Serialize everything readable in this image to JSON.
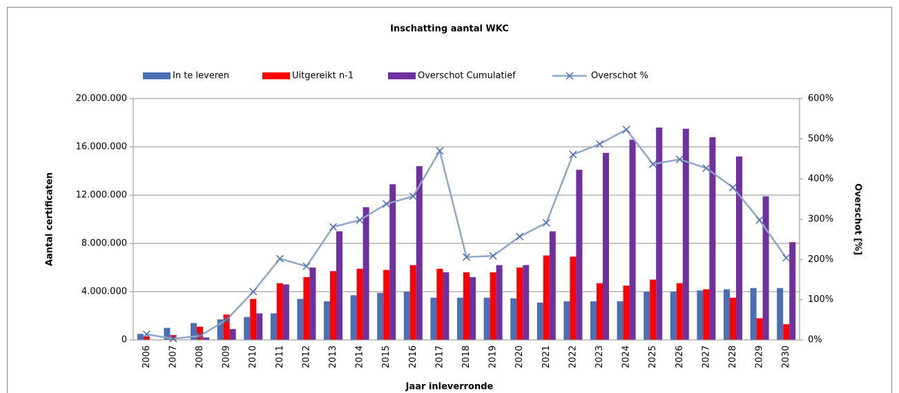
{
  "chart_data": {
    "type": "bar",
    "title": "Inschatting aantal WKC",
    "x_label": "Jaar inleverronde",
    "y_label": "Aantal certificaten",
    "y2_label": "Overschot [%]",
    "categories": [
      "2006",
      "2007",
      "2008",
      "2009",
      "2010",
      "2011",
      "2012",
      "2013",
      "2014",
      "2015",
      "2016",
      "2017",
      "2018",
      "2019",
      "2020",
      "2021",
      "2022",
      "2023",
      "2024",
      "2025",
      "2026",
      "2027",
      "2028",
      "2029",
      "2030"
    ],
    "series": [
      {
        "name": "In te leveren",
        "type": "bar",
        "color": "#4a6fb5",
        "values": [
          500000,
          1000000,
          1400000,
          1700000,
          1900000,
          2200000,
          3400000,
          3200000,
          3700000,
          3900000,
          4000000,
          3500000,
          3500000,
          3500000,
          3450000,
          3100000,
          3200000,
          3200000,
          3200000,
          4000000,
          4000000,
          4100000,
          4200000,
          4300000,
          4300000
        ]
      },
      {
        "name": "Uitgereikt n-1",
        "type": "bar",
        "color": "#ff0000",
        "values": [
          300000,
          400000,
          1100000,
          2100000,
          3400000,
          4700000,
          5200000,
          5700000,
          5900000,
          5800000,
          6200000,
          5900000,
          5600000,
          5600000,
          6000000,
          7000000,
          6900000,
          4700000,
          4500000,
          5000000,
          4700000,
          4200000,
          3500000,
          1800000,
          1300000
        ]
      },
      {
        "name": "Overschot Cumulatief",
        "type": "bar",
        "color": "#7030a0",
        "values": [
          0,
          0,
          200000,
          900000,
          2200000,
          4600000,
          6000000,
          9000000,
          11000000,
          12900000,
          14400000,
          5600000,
          5200000,
          6200000,
          6200000,
          9000000,
          14100000,
          15500000,
          16600000,
          17600000,
          17500000,
          16800000,
          15200000,
          11900000,
          8100000
        ]
      },
      {
        "name": "Overschot %",
        "type": "line",
        "axis": "y2",
        "color": "#8ea6c8",
        "values": [
          14,
          3,
          10,
          50,
          120,
          202,
          183,
          281,
          298,
          338,
          357,
          470,
          206,
          209,
          257,
          291,
          461,
          487,
          523,
          437,
          449,
          427,
          379,
          298,
          204
        ]
      }
    ],
    "ylim": [
      0,
      20000000
    ],
    "yticks": [
      {
        "value": 0,
        "label": "0"
      },
      {
        "value": 4000000,
        "label": "4.000.000"
      },
      {
        "value": 8000000,
        "label": "8.000.000"
      },
      {
        "value": 12000000,
        "label": "12.000.000"
      },
      {
        "value": 16000000,
        "label": "16.000.000"
      },
      {
        "value": 20000000,
        "label": "20.000.000"
      }
    ],
    "y2lim": [
      0,
      600
    ],
    "y2ticks": [
      {
        "value": 0,
        "label": "0%"
      },
      {
        "value": 100,
        "label": "100%"
      },
      {
        "value": 200,
        "label": "200%"
      },
      {
        "value": 300,
        "label": "300%"
      },
      {
        "value": 400,
        "label": "400%"
      },
      {
        "value": 500,
        "label": "500%"
      },
      {
        "value": 600,
        "label": "600%"
      }
    ],
    "grid": true,
    "legend": "top"
  }
}
